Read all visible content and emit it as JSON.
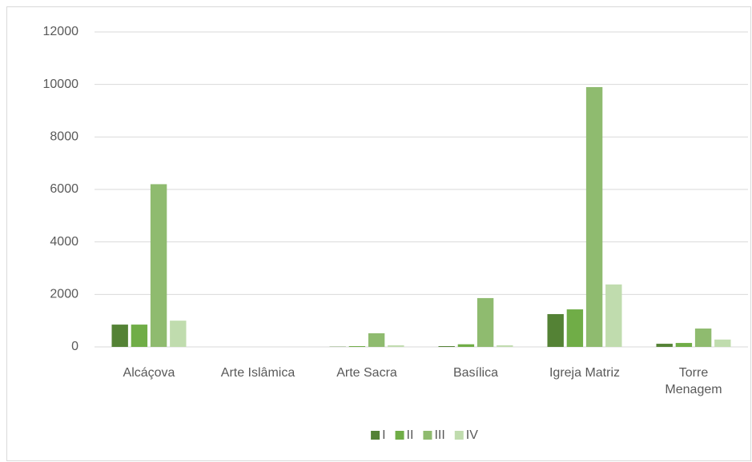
{
  "chart_data": {
    "type": "bar",
    "categories": [
      "Alcáçova",
      "Arte Islâmica",
      "Arte Sacra",
      "Basílica",
      "Igreja Matriz",
      "Torre Menagem"
    ],
    "series": [
      {
        "name": "I",
        "color": "#548235",
        "values": [
          850,
          0,
          10,
          30,
          1250,
          120
        ]
      },
      {
        "name": "II",
        "color": "#70ad47",
        "values": [
          850,
          0,
          30,
          100,
          1430,
          150
        ]
      },
      {
        "name": "III",
        "color": "#8fbb6f",
        "values": [
          6200,
          0,
          520,
          1860,
          9900,
          700
        ]
      },
      {
        "name": "IV",
        "color": "#c0dcae",
        "values": [
          1000,
          0,
          60,
          60,
          2380,
          280
        ]
      }
    ],
    "ylim": [
      0,
      12000
    ],
    "yticks": [
      0,
      2000,
      4000,
      6000,
      8000,
      10000,
      12000
    ],
    "grid": true,
    "legend": "bottom"
  }
}
